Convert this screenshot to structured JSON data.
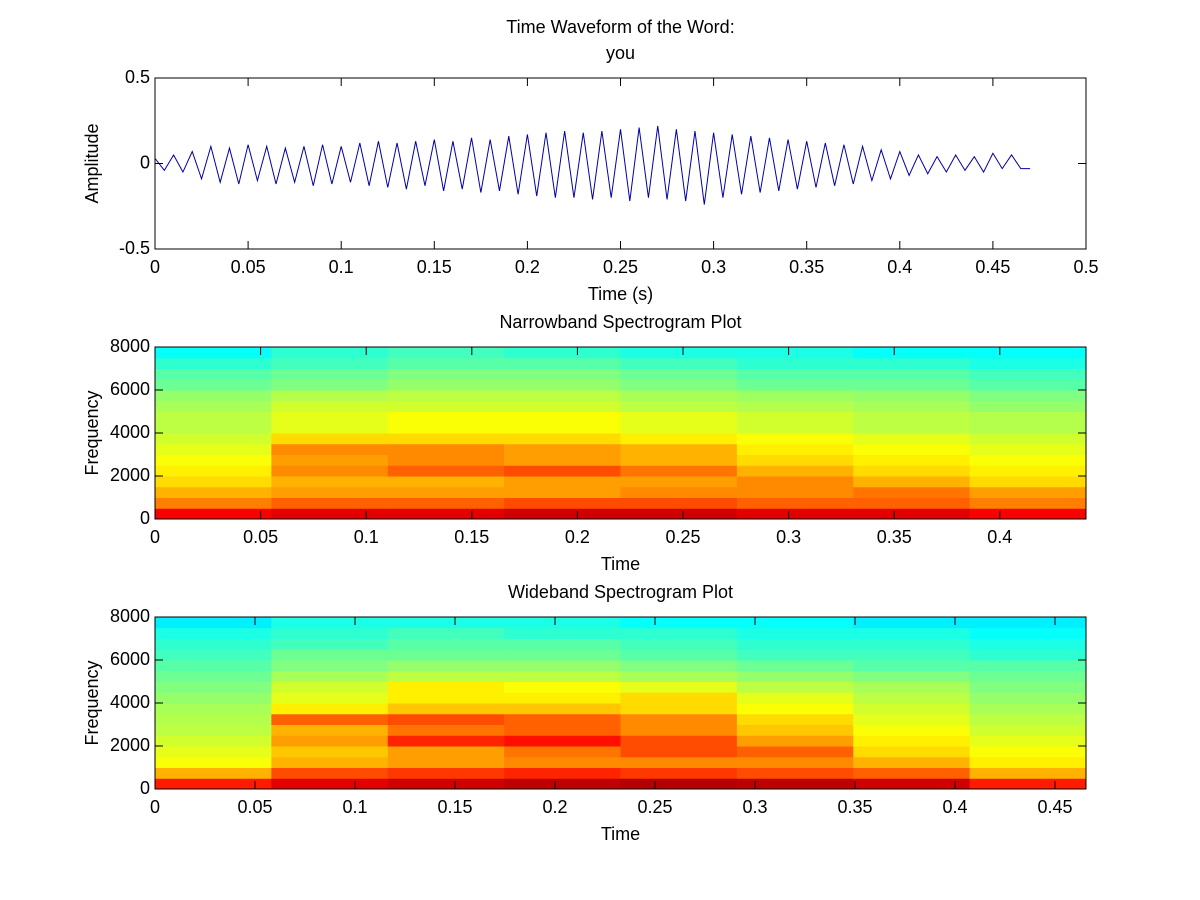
{
  "chart_data": [
    {
      "type": "line",
      "title": "Time Waveform of the Word:",
      "subtitle": "you",
      "x_label": "Time (s)",
      "y_label": "Amplitude",
      "color": "#0000a8",
      "xlim": [
        0,
        0.5
      ],
      "xticks": [
        0,
        0.05,
        0.1,
        0.15,
        0.2,
        0.25,
        0.3,
        0.35,
        0.4,
        0.45,
        0.5
      ],
      "ylim": [
        -0.5,
        0.5
      ],
      "yticks": [
        -0.5,
        0,
        0.5
      ],
      "x": [
        0,
        0.005,
        0.01,
        0.015,
        0.02,
        0.025,
        0.03,
        0.035,
        0.04,
        0.045,
        0.05,
        0.055,
        0.06,
        0.065,
        0.07,
        0.075,
        0.08,
        0.085,
        0.09,
        0.095,
        0.1,
        0.105,
        0.11,
        0.115,
        0.12,
        0.125,
        0.13,
        0.135,
        0.14,
        0.145,
        0.15,
        0.155,
        0.16,
        0.165,
        0.17,
        0.175,
        0.18,
        0.185,
        0.19,
        0.195,
        0.2,
        0.205,
        0.21,
        0.215,
        0.22,
        0.225,
        0.23,
        0.235,
        0.24,
        0.245,
        0.25,
        0.255,
        0.26,
        0.265,
        0.27,
        0.275,
        0.28,
        0.285,
        0.29,
        0.295,
        0.3,
        0.305,
        0.31,
        0.315,
        0.32,
        0.325,
        0.33,
        0.335,
        0.34,
        0.345,
        0.35,
        0.355,
        0.36,
        0.365,
        0.37,
        0.375,
        0.38,
        0.385,
        0.39,
        0.395,
        0.4,
        0.405,
        0.41,
        0.415,
        0.42,
        0.425,
        0.43,
        0.435,
        0.44,
        0.445,
        0.45,
        0.455,
        0.46,
        0.465,
        0.47
      ],
      "values": [
        0.03,
        -0.04,
        0.05,
        -0.05,
        0.07,
        -0.09,
        0.1,
        -0.11,
        0.09,
        -0.12,
        0.11,
        -0.1,
        0.1,
        -0.12,
        0.09,
        -0.11,
        0.1,
        -0.13,
        0.11,
        -0.12,
        0.1,
        -0.11,
        0.12,
        -0.13,
        0.13,
        -0.14,
        0.12,
        -0.15,
        0.13,
        -0.13,
        0.14,
        -0.16,
        0.13,
        -0.15,
        0.15,
        -0.17,
        0.14,
        -0.16,
        0.16,
        -0.18,
        0.17,
        -0.19,
        0.18,
        -0.2,
        0.19,
        -0.2,
        0.18,
        -0.21,
        0.19,
        -0.2,
        0.2,
        -0.22,
        0.21,
        -0.2,
        0.22,
        -0.21,
        0.2,
        -0.22,
        0.19,
        -0.24,
        0.18,
        -0.2,
        0.17,
        -0.18,
        0.16,
        -0.17,
        0.15,
        -0.16,
        0.14,
        -0.15,
        0.13,
        -0.14,
        0.12,
        -0.13,
        0.11,
        -0.12,
        0.1,
        -0.1,
        0.08,
        -0.09,
        0.07,
        -0.07,
        0.05,
        -0.06,
        0.04,
        -0.05,
        0.05,
        -0.04,
        0.04,
        -0.05,
        0.06,
        -0.03,
        0.05,
        -0.03,
        -0.03
      ]
    },
    {
      "type": "heatmap",
      "title": "Narrowband Spectrogram Plot",
      "x_label": "Time",
      "y_label": "Frequency",
      "colormap": "jet",
      "xlim": [
        0,
        0.4408
      ],
      "xticks": [
        0,
        0.05,
        0.1,
        0.15,
        0.2,
        0.25,
        0.3,
        0.35,
        0.4
      ],
      "ylim": [
        0,
        8000
      ],
      "yticks": [
        0,
        2000,
        4000,
        6000,
        8000
      ],
      "z": [
        [
          0.88,
          0.9,
          0.9,
          0.92,
          0.92,
          0.9,
          0.9,
          0.88
        ],
        [
          0.75,
          0.78,
          0.78,
          0.8,
          0.8,
          0.78,
          0.78,
          0.75
        ],
        [
          0.7,
          0.72,
          0.72,
          0.72,
          0.74,
          0.74,
          0.76,
          0.72
        ],
        [
          0.66,
          0.7,
          0.7,
          0.72,
          0.72,
          0.74,
          0.7,
          0.66
        ],
        [
          0.64,
          0.74,
          0.78,
          0.8,
          0.76,
          0.7,
          0.66,
          0.64
        ],
        [
          0.62,
          0.72,
          0.74,
          0.72,
          0.7,
          0.66,
          0.64,
          0.62
        ],
        [
          0.6,
          0.74,
          0.74,
          0.72,
          0.7,
          0.64,
          0.62,
          0.6
        ],
        [
          0.58,
          0.66,
          0.66,
          0.66,
          0.64,
          0.62,
          0.6,
          0.58
        ],
        [
          0.56,
          0.6,
          0.62,
          0.62,
          0.6,
          0.58,
          0.56,
          0.55
        ],
        [
          0.56,
          0.6,
          0.62,
          0.62,
          0.6,
          0.58,
          0.56,
          0.55
        ],
        [
          0.54,
          0.58,
          0.58,
          0.58,
          0.56,
          0.55,
          0.54,
          0.52
        ],
        [
          0.52,
          0.55,
          0.56,
          0.56,
          0.54,
          0.53,
          0.52,
          0.5
        ],
        [
          0.48,
          0.5,
          0.52,
          0.52,
          0.5,
          0.48,
          0.48,
          0.46
        ],
        [
          0.46,
          0.48,
          0.5,
          0.5,
          0.48,
          0.46,
          0.46,
          0.44
        ],
        [
          0.42,
          0.44,
          0.46,
          0.46,
          0.44,
          0.42,
          0.42,
          0.4
        ],
        [
          0.38,
          0.42,
          0.44,
          0.42,
          0.4,
          0.4,
          0.38,
          0.38
        ]
      ]
    },
    {
      "type": "heatmap",
      "title": "Wideband Spectrogram Plot",
      "x_label": "Time",
      "y_label": "Frequency",
      "colormap": "jet",
      "xlim": [
        0,
        0.4655
      ],
      "xticks": [
        0,
        0.05,
        0.1,
        0.15,
        0.2,
        0.25,
        0.3,
        0.35,
        0.4,
        0.45
      ],
      "ylim": [
        0,
        8000
      ],
      "yticks": [
        0,
        2000,
        4000,
        6000,
        8000
      ],
      "z": [
        [
          0.85,
          0.9,
          0.92,
          0.94,
          0.95,
          0.94,
          0.92,
          0.85
        ],
        [
          0.7,
          0.8,
          0.82,
          0.84,
          0.82,
          0.8,
          0.78,
          0.7
        ],
        [
          0.62,
          0.7,
          0.72,
          0.74,
          0.74,
          0.74,
          0.7,
          0.64
        ],
        [
          0.6,
          0.68,
          0.72,
          0.76,
          0.8,
          0.78,
          0.66,
          0.62
        ],
        [
          0.58,
          0.72,
          0.84,
          0.86,
          0.8,
          0.72,
          0.64,
          0.6
        ],
        [
          0.56,
          0.7,
          0.76,
          0.78,
          0.74,
          0.68,
          0.62,
          0.58
        ],
        [
          0.55,
          0.78,
          0.8,
          0.78,
          0.74,
          0.66,
          0.6,
          0.56
        ],
        [
          0.54,
          0.64,
          0.68,
          0.68,
          0.66,
          0.62,
          0.58,
          0.54
        ],
        [
          0.52,
          0.6,
          0.64,
          0.64,
          0.66,
          0.6,
          0.56,
          0.52
        ],
        [
          0.5,
          0.58,
          0.64,
          0.62,
          0.6,
          0.56,
          0.54,
          0.5
        ],
        [
          0.48,
          0.54,
          0.56,
          0.56,
          0.54,
          0.52,
          0.5,
          0.48
        ],
        [
          0.46,
          0.5,
          0.52,
          0.52,
          0.5,
          0.48,
          0.46,
          0.46
        ],
        [
          0.44,
          0.48,
          0.48,
          0.48,
          0.46,
          0.44,
          0.44,
          0.42
        ],
        [
          0.42,
          0.44,
          0.46,
          0.46,
          0.44,
          0.42,
          0.42,
          0.4
        ],
        [
          0.4,
          0.42,
          0.44,
          0.42,
          0.42,
          0.4,
          0.4,
          0.38
        ],
        [
          0.36,
          0.4,
          0.4,
          0.4,
          0.38,
          0.38,
          0.36,
          0.36
        ]
      ]
    }
  ]
}
